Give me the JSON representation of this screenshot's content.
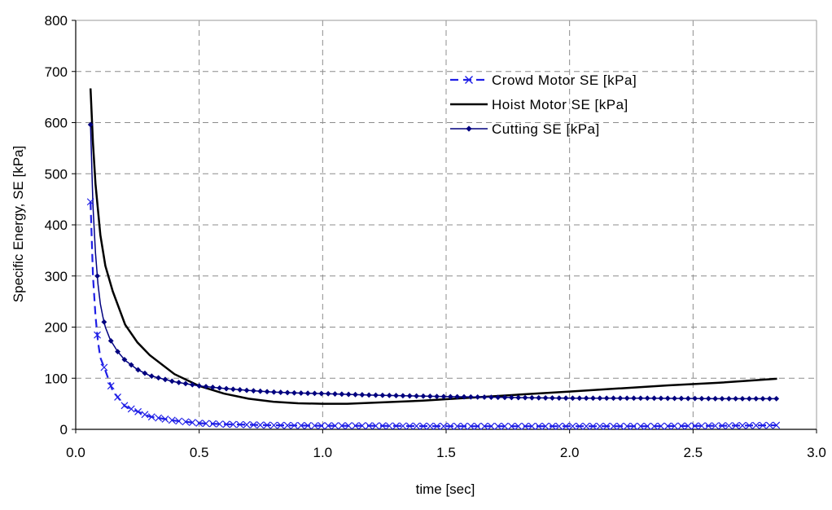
{
  "chart_data": {
    "type": "line",
    "title": "",
    "xlabel": "time [sec]",
    "ylabel": "Specific Energy, SE [kPa]",
    "xlim": [
      0.0,
      3.0
    ],
    "ylim": [
      0,
      800
    ],
    "x_ticks": [
      "0.0",
      "0.5",
      "1.0",
      "1.5",
      "2.0",
      "2.5",
      "3.0"
    ],
    "y_ticks": [
      "0",
      "100",
      "200",
      "300",
      "400",
      "500",
      "600",
      "700",
      "800"
    ],
    "grid": true,
    "legend_position": "top-right",
    "series": [
      {
        "name": "Crowd Motor SE [kPa]",
        "color": "#1f1fe6",
        "style": "dashed-with-x-markers",
        "x": [
          0.06,
          0.07,
          0.08,
          0.09,
          0.1,
          0.12,
          0.15,
          0.2,
          0.3,
          0.4,
          0.5,
          0.6,
          0.8,
          1.0,
          1.2,
          1.5,
          1.8,
          2.0,
          2.3,
          2.6,
          2.84
        ],
        "y": [
          445,
          300,
          222,
          172,
          140,
          115,
          75,
          45,
          25,
          17,
          12,
          10,
          8,
          7,
          7,
          6,
          6,
          6,
          6,
          7,
          8
        ]
      },
      {
        "name": "Hoist Motor SE [kPa]",
        "color": "#000000",
        "style": "solid",
        "x": [
          0.06,
          0.07,
          0.08,
          0.1,
          0.12,
          0.15,
          0.2,
          0.25,
          0.3,
          0.4,
          0.5,
          0.6,
          0.7,
          0.8,
          0.9,
          1.0,
          1.1,
          1.2,
          1.4,
          1.6,
          1.8,
          2.0,
          2.2,
          2.4,
          2.6,
          2.84
        ],
        "y": [
          667,
          560,
          480,
          380,
          320,
          270,
          205,
          170,
          145,
          108,
          85,
          70,
          60,
          54,
          51,
          50,
          50,
          52,
          56,
          62,
          68,
          74,
          80,
          86,
          91,
          99
        ]
      },
      {
        "name": "Cutting SE [kPa]",
        "color": "#00007f",
        "style": "solid-with-diamond-markers",
        "x": [
          0.06,
          0.07,
          0.08,
          0.09,
          0.1,
          0.11,
          0.12,
          0.14,
          0.17,
          0.2,
          0.25,
          0.3,
          0.4,
          0.5,
          0.6,
          0.7,
          0.8,
          0.9,
          1.0,
          1.2,
          1.5,
          1.8,
          2.0,
          2.3,
          2.6,
          2.84
        ],
        "y": [
          596,
          437,
          345,
          285,
          245,
          220,
          200,
          175,
          152,
          135,
          117,
          105,
          93,
          85,
          80,
          76,
          73,
          71,
          70,
          67,
          64,
          62,
          61,
          61,
          60,
          60
        ]
      }
    ]
  }
}
